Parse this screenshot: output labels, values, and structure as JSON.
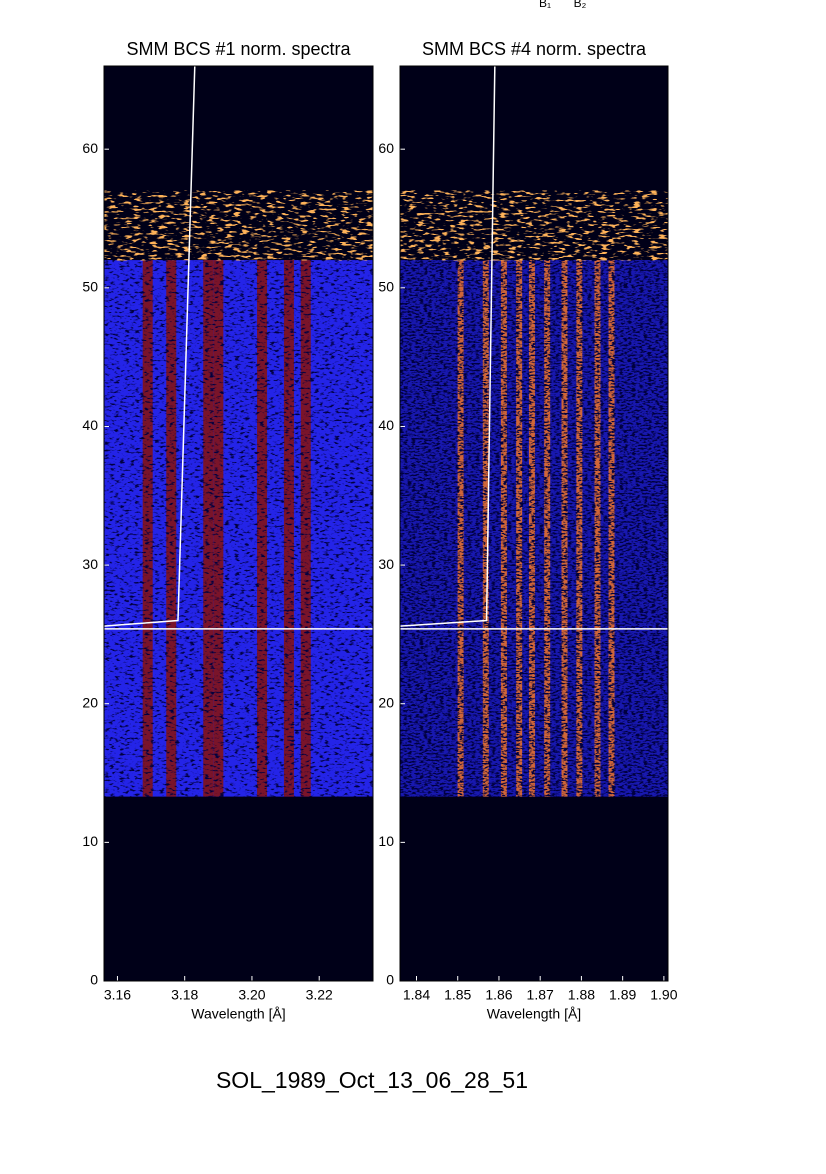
{
  "header": {
    "markers": [
      "B₁",
      "B₂"
    ]
  },
  "title": "SOL_1989_Oct_13_06_28_51",
  "chart_data": [
    {
      "type": "spectrogram",
      "title": "SMM BCS #1 norm. spectra",
      "x_label": "Wavelength [Å]",
      "xlim": [
        3.156,
        3.236
      ],
      "xticks": [
        3.16,
        3.18,
        {
          "value": 3.2,
          "label": "3.20"
        },
        3.22
      ],
      "ylim": [
        0,
        66
      ],
      "yticks": [
        0,
        10,
        20,
        30,
        40,
        50,
        60
      ],
      "spectrum_extent": [
        13.3,
        52
      ],
      "noise_extent": [
        52,
        57
      ],
      "lines": [
        3.169,
        3.176,
        3.187,
        3.19,
        3.203,
        3.211,
        3.216
      ],
      "line_color": "#8a1208",
      "band_color": "#2424e8",
      "overlay": [
        {
          "x": [
            3.156,
            3.178,
            3.183
          ],
          "y": [
            25.6,
            26,
            66
          ]
        },
        {
          "x": [
            3.156,
            3.236
          ],
          "y": [
            25.4,
            25.4
          ]
        }
      ]
    },
    {
      "type": "spectrogram",
      "title": "SMM BCS #4 norm. spectra",
      "x_label": "Wavelength [Å]",
      "xlim": [
        1.836,
        1.901
      ],
      "xticks": [
        1.84,
        1.85,
        1.86,
        1.87,
        1.88,
        1.89,
        {
          "value": 1.9,
          "label": "1.90"
        }
      ],
      "ylim": [
        0,
        66
      ],
      "yticks": [
        0,
        10,
        20,
        30,
        40,
        50,
        60
      ],
      "spectrum_extent": [
        13.3,
        52
      ],
      "noise_extent": [
        52,
        57
      ],
      "lines": [
        1.8507,
        1.8568,
        1.8612,
        1.8649,
        1.868,
        1.8717,
        1.8759,
        1.8795,
        1.8839,
        1.8873
      ],
      "line_color": "#ff7a1a",
      "band_color": "#1818b0",
      "overlay": [
        {
          "x": [
            1.836,
            1.857,
            1.859
          ],
          "y": [
            25.6,
            26,
            66
          ]
        },
        {
          "x": [
            1.836,
            1.901
          ],
          "y": [
            25.4,
            25.4
          ]
        }
      ]
    }
  ]
}
